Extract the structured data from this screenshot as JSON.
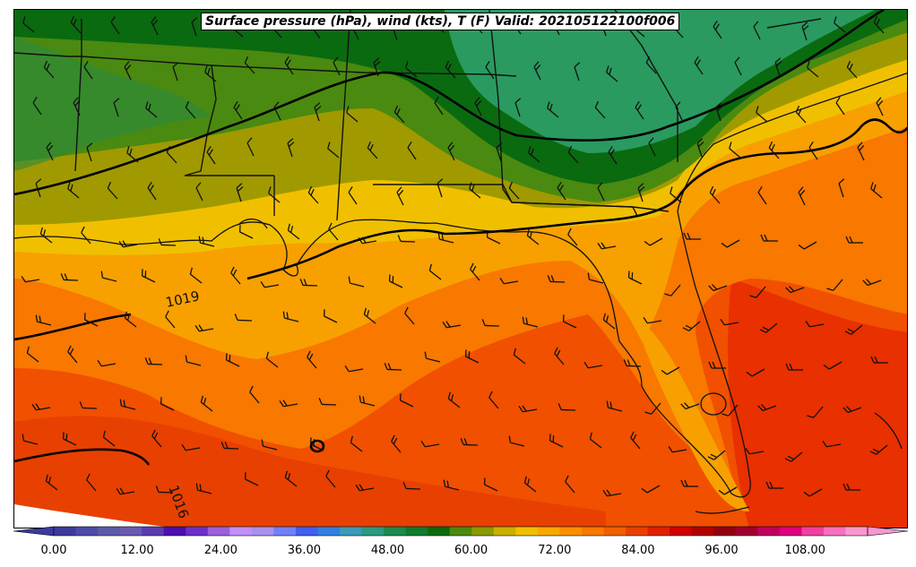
{
  "title": "Surface pressure (hPa), wind (kts), T (F) Valid: 202105122100f006",
  "contour_labels": [
    "1019",
    "1016"
  ],
  "colorbar": {
    "ticks": [
      "0.00",
      "12.00",
      "24.00",
      "36.00",
      "48.00",
      "60.00",
      "72.00",
      "84.00",
      "96.00",
      "108.00"
    ],
    "colors": [
      "#3b3b9e",
      "#4b4ba8",
      "#5a5aa8",
      "#6a5ab0",
      "#5b3bb0",
      "#4a10b0",
      "#6a30c8",
      "#9a60e0",
      "#c090f8",
      "#a890f0",
      "#7080f8",
      "#4060f0",
      "#3080e0",
      "#3a9ab8",
      "#2a9a80",
      "#1a8a50",
      "#107a30",
      "#0a6a10",
      "#4a8a10",
      "#8a9a00",
      "#c8b000",
      "#f0c000",
      "#f8a800",
      "#f89000",
      "#f87800",
      "#f06000",
      "#e84000",
      "#e02000",
      "#d00000",
      "#b00000",
      "#900010",
      "#a00030",
      "#c00060",
      "#e00080",
      "#f040a0",
      "#f870c0",
      "#f898d0"
    ]
  },
  "map_colors": {
    "green_dark": "#0a6a10",
    "green_mid": "#2a9a60",
    "green_olive": "#4a8a10",
    "olive": "#a09a00",
    "yellow": "#f0c000",
    "orange_light": "#f8a800",
    "orange": "#f88000",
    "orange_red": "#f05000",
    "red": "#e83000"
  }
}
